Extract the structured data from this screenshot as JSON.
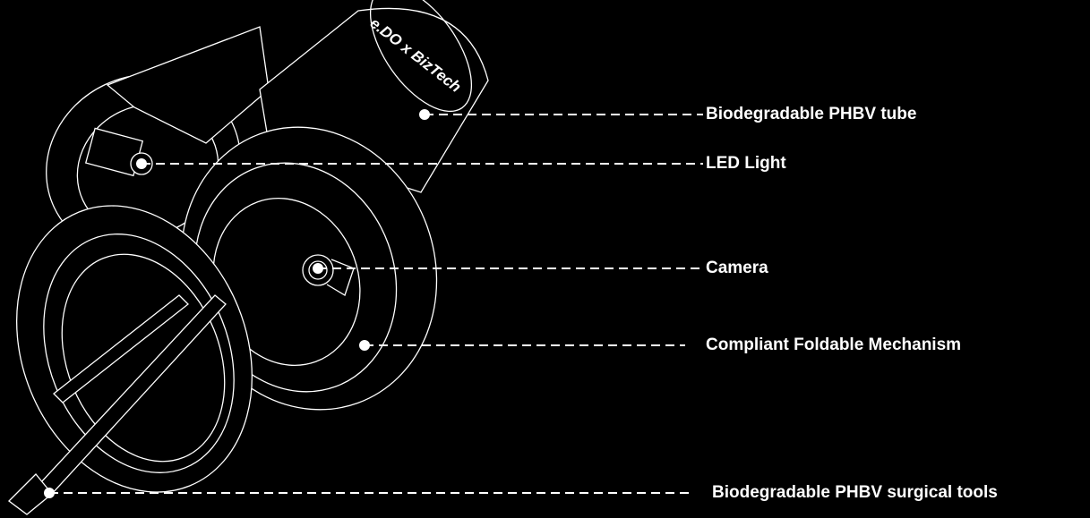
{
  "tube_text": "e.DO x BizTech",
  "callouts": [
    {
      "label": "Biodegradable PHBV tube"
    },
    {
      "label": "LED Light"
    },
    {
      "label": "Camera"
    },
    {
      "label": "Compliant Foldable Mechanism"
    },
    {
      "label": "Biodegradable PHBV surgical tools"
    }
  ]
}
